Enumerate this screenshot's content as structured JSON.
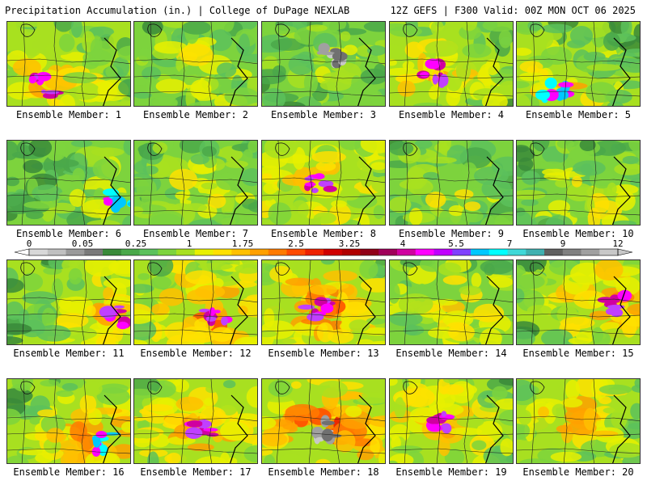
{
  "header": {
    "title": "Precipitation Accumulation (in.) | College of DuPage NEXLAB",
    "run_info": "12Z GEFS | F300 Valid: 00Z MON OCT 06 2025"
  },
  "colorbar": {
    "ticks": [
      "0",
      "0.05",
      "0.25",
      "1",
      "1.75",
      "2.5",
      "3.25",
      "4",
      "5.5",
      "7",
      "9",
      "12"
    ],
    "colors": [
      "#d8d8d8",
      "#c0c0c0",
      "#9a9a9a",
      "#7a7a7a",
      "#3a8a3a",
      "#4aa84a",
      "#5cc15c",
      "#7dd33d",
      "#a8e020",
      "#e8f000",
      "#ffe000",
      "#ffc000",
      "#ffa000",
      "#ff7a00",
      "#ff4a00",
      "#ee2200",
      "#d00000",
      "#b00000",
      "#900018",
      "#a0005a",
      "#d000a0",
      "#ff00ff",
      "#c000ff",
      "#8040ff",
      "#00c8ff",
      "#00ffff",
      "#40d8d8",
      "#40b0b0",
      "#606060",
      "#808080",
      "#a0a0a0",
      "#c8c8c8"
    ]
  },
  "members": [
    {
      "label": "Ensemble Member: 1",
      "intensity": 0.55,
      "hotspot": [
        0.3,
        0.75
      ],
      "spike": "magenta",
      "seed": 1
    },
    {
      "label": "Ensemble Member: 2",
      "intensity": 0.35,
      "hotspot": [
        0.55,
        0.55
      ],
      "spike": "none",
      "seed": 2
    },
    {
      "label": "Ensemble Member: 3",
      "intensity": 0.25,
      "hotspot": [
        0.55,
        0.4
      ],
      "spike": "gray",
      "seed": 3
    },
    {
      "label": "Ensemble Member: 4",
      "intensity": 0.55,
      "hotspot": [
        0.35,
        0.6
      ],
      "spike": "magenta",
      "seed": 4
    },
    {
      "label": "Ensemble Member: 5",
      "intensity": 0.5,
      "hotspot": [
        0.3,
        0.8
      ],
      "spike": "cyan",
      "seed": 5
    },
    {
      "label": "Ensemble Member: 6",
      "intensity": 0.35,
      "hotspot": [
        0.9,
        0.7
      ],
      "spike": "cyan",
      "seed": 6
    },
    {
      "label": "Ensemble Member: 7",
      "intensity": 0.35,
      "hotspot": [
        0.55,
        0.6
      ],
      "spike": "none",
      "seed": 7
    },
    {
      "label": "Ensemble Member: 8",
      "intensity": 0.55,
      "hotspot": [
        0.45,
        0.5
      ],
      "spike": "magenta",
      "seed": 8
    },
    {
      "label": "Ensemble Member: 9",
      "intensity": 0.35,
      "hotspot": [
        0.5,
        0.6
      ],
      "spike": "none",
      "seed": 9
    },
    {
      "label": "Ensemble Member: 10",
      "intensity": 0.4,
      "hotspot": [
        0.55,
        0.7
      ],
      "spike": "none",
      "seed": 10
    },
    {
      "label": "Ensemble Member: 11",
      "intensity": 0.55,
      "hotspot": [
        0.85,
        0.65
      ],
      "spike": "magenta",
      "seed": 11
    },
    {
      "label": "Ensemble Member: 12",
      "intensity": 0.75,
      "hotspot": [
        0.65,
        0.65
      ],
      "spike": "magenta",
      "seed": 12
    },
    {
      "label": "Ensemble Member: 13",
      "intensity": 0.7,
      "hotspot": [
        0.45,
        0.55
      ],
      "spike": "magenta",
      "seed": 13
    },
    {
      "label": "Ensemble Member: 14",
      "intensity": 0.45,
      "hotspot": [
        0.45,
        0.55
      ],
      "spike": "none",
      "seed": 14
    },
    {
      "label": "Ensemble Member: 15",
      "intensity": 0.65,
      "hotspot": [
        0.8,
        0.5
      ],
      "spike": "magenta",
      "seed": 15
    },
    {
      "label": "Ensemble Member: 16",
      "intensity": 0.7,
      "hotspot": [
        0.75,
        0.75
      ],
      "spike": "cyan",
      "seed": 16
    },
    {
      "label": "Ensemble Member: 17",
      "intensity": 0.6,
      "hotspot": [
        0.55,
        0.55
      ],
      "spike": "magenta",
      "seed": 17
    },
    {
      "label": "Ensemble Member: 18",
      "intensity": 0.8,
      "hotspot": [
        0.5,
        0.6
      ],
      "spike": "gray",
      "seed": 18
    },
    {
      "label": "Ensemble Member: 19",
      "intensity": 0.6,
      "hotspot": [
        0.4,
        0.5
      ],
      "spike": "magenta",
      "seed": 19
    },
    {
      "label": "Ensemble Member: 20",
      "intensity": 0.55,
      "hotspot": [
        0.45,
        0.45
      ],
      "spike": "none",
      "seed": 20
    }
  ]
}
